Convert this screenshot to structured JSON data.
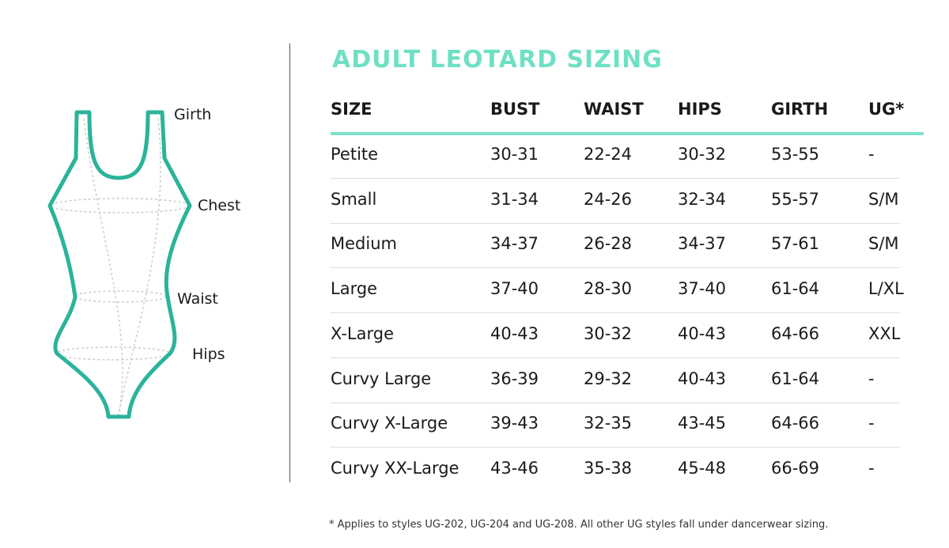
{
  "diagram": {
    "labels": [
      "Girth",
      "Chest",
      "Waist",
      "Hips"
    ]
  },
  "header": {
    "title": "ADULT LEOTARD SIZING"
  },
  "table": {
    "columns": [
      "SIZE",
      "BUST",
      "WAIST",
      "HIPS",
      "GIRTH",
      "UG*"
    ],
    "rows": [
      [
        "Petite",
        "30-31",
        "22-24",
        "30-32",
        "53-55",
        "-"
      ],
      [
        "Small",
        "31-34",
        "24-26",
        "32-34",
        "55-57",
        "S/M"
      ],
      [
        "Medium",
        "34-37",
        "26-28",
        "34-37",
        "57-61",
        "S/M"
      ],
      [
        "Large",
        "37-40",
        "28-30",
        "37-40",
        "61-64",
        "L/XL"
      ],
      [
        "X-Large",
        "40-43",
        "30-32",
        "40-43",
        "64-66",
        "XXL"
      ],
      [
        "Curvy Large",
        "36-39",
        "29-32",
        "40-43",
        "61-64",
        "-"
      ],
      [
        "Curvy X-Large",
        "39-43",
        "32-35",
        "43-45",
        "64-66",
        "-"
      ],
      [
        "Curvy XX-Large",
        "43-46",
        "35-38",
        "45-48",
        "66-69",
        "-"
      ]
    ]
  },
  "footnote": "* Applies to styles UG-202, UG-204 and UG-208. All other UG styles fall under dancerwear sizing."
}
